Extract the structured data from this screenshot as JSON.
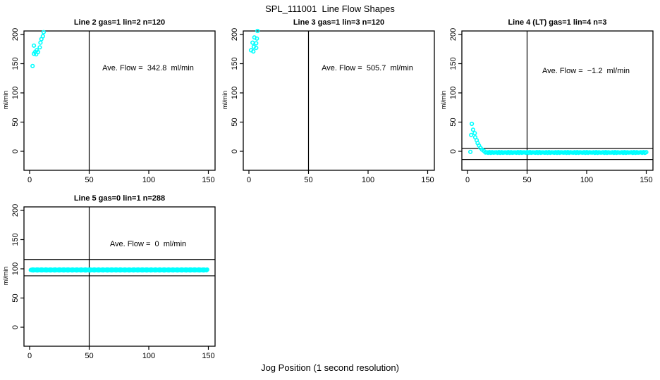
{
  "title": "SPL_111001  Line Flow Shapes",
  "xlabel": "Jog Position (1 second resolution)",
  "colors": {
    "points": "#00FFFF",
    "axes": "#000000",
    "background": "#ffffff"
  },
  "chart_data": [
    {
      "type": "scatter",
      "title": "Line 2 gas=1 lin=2 n=120",
      "annotation": "Ave. Flow =  342.8  ml/min",
      "ylabel": "ml/min",
      "xticks": [
        0,
        50,
        100,
        150
      ],
      "yticks": [
        0,
        50,
        100,
        150,
        200
      ],
      "xlim": [
        -4.7,
        155.6
      ],
      "ylim": [
        -32,
        206
      ],
      "grid": false,
      "legend": "none",
      "vline_x": 50,
      "hlines": [],
      "points": [
        [
          2.5,
          146
        ],
        [
          3.6,
          167
        ],
        [
          4.6,
          170
        ],
        [
          5.5,
          166
        ],
        [
          5.9,
          173
        ],
        [
          7.1,
          170
        ],
        [
          3.6,
          181
        ],
        [
          8.5,
          178
        ],
        [
          9.1,
          186
        ],
        [
          9.9,
          192
        ],
        [
          11.1,
          197
        ],
        [
          11.8,
          204
        ]
      ],
      "runs": []
    },
    {
      "type": "scatter",
      "title": "Line 3 gas=1 lin=3 n=120",
      "annotation": "Ave. Flow =  505.7  ml/min",
      "ylabel": "ml/min",
      "xticks": [
        0,
        50,
        100,
        150
      ],
      "yticks": [
        0,
        50,
        100,
        150,
        200
      ],
      "xlim": [
        -4.7,
        155.6
      ],
      "ylim": [
        -32,
        206
      ],
      "grid": false,
      "legend": "none",
      "vline_x": 50,
      "hlines": [],
      "points": [
        [
          1.8,
          173
        ],
        [
          3.7,
          171
        ],
        [
          4.1,
          179
        ],
        [
          3.1,
          186
        ],
        [
          6.1,
          177
        ],
        [
          6.1,
          185
        ],
        [
          6.7,
          193
        ],
        [
          4.6,
          195
        ],
        [
          7.2,
          206
        ]
      ],
      "runs": []
    },
    {
      "type": "scatter",
      "title": "Line 4 (LT) gas=1 lin=4 n=3",
      "annotation": "Ave. Flow =  −1.2  ml/min",
      "ylabel": "ml/min",
      "xticks": [
        0,
        50,
        100,
        150
      ],
      "yticks": [
        0,
        50,
        100,
        150,
        200
      ],
      "xlim": [
        -4.7,
        155.6
      ],
      "ylim": [
        -32,
        206
      ],
      "grid": false,
      "legend": "none",
      "vline_x": 50,
      "hlines": [
        5,
        -14
      ],
      "points": [
        [
          2.4,
          -1
        ],
        [
          3.6,
          47
        ],
        [
          4.7,
          37
        ],
        [
          3.1,
          28
        ],
        [
          6.1,
          31
        ],
        [
          6.5,
          24
        ],
        [
          7.7,
          19
        ],
        [
          8.5,
          14
        ],
        [
          9.6,
          10
        ],
        [
          10.8,
          6
        ],
        [
          12.2,
          3
        ],
        [
          13.6,
          1
        ]
      ],
      "runs": [
        {
          "x_start": 15,
          "x_end": 150,
          "y": -2,
          "count": 120,
          "jitter": 0.7
        }
      ]
    },
    {
      "type": "scatter",
      "title": "Line 5 gas=0 lin=1 n=288",
      "annotation": "Ave. Flow =  0  ml/min",
      "ylabel": "ml/min",
      "xticks": [
        0,
        50,
        100,
        150
      ],
      "yticks": [
        0,
        50,
        100,
        150,
        200
      ],
      "xlim": [
        -4.7,
        155.6
      ],
      "ylim": [
        -32,
        206
      ],
      "grid": false,
      "legend": "none",
      "vline_x": 50,
      "hlines": [
        116,
        88
      ],
      "points": [],
      "runs": [
        {
          "x_start": 1,
          "x_end": 149,
          "y": 98,
          "count": 288,
          "jitter": 0.8
        }
      ]
    }
  ]
}
